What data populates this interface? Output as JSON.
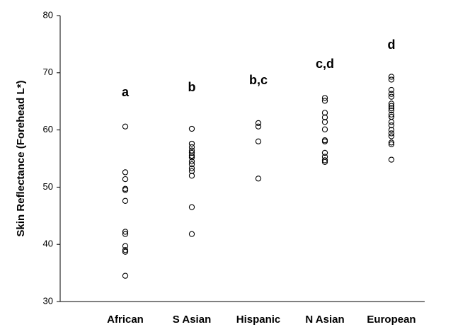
{
  "chart_data": {
    "type": "strip",
    "y_label": "Skin Reflectance (Forehead L*)",
    "categories": [
      "African",
      "S Asian",
      "Hispanic",
      "N Asian",
      "European"
    ],
    "annotations": [
      "a",
      "b",
      "b,c",
      "c,d",
      "d"
    ],
    "values": [
      [
        60.6,
        52.6,
        51.4,
        49.7,
        49.5,
        47.6,
        42.2,
        41.8,
        39.7,
        39.0,
        38.7,
        34.5
      ],
      [
        60.2,
        57.6,
        57.0,
        56.4,
        56.0,
        55.5,
        55.2,
        54.5,
        54.0,
        53.3,
        52.8,
        52.0,
        46.5,
        41.8
      ],
      [
        61.2,
        60.6,
        58.0,
        51.5
      ],
      [
        65.6,
        65.1,
        63.0,
        62.2,
        61.4,
        60.1,
        58.2,
        58.0,
        56.0,
        55.3,
        54.7,
        54.4
      ],
      [
        69.3,
        68.8,
        67.0,
        66.3,
        65.8,
        64.6,
        64.2,
        63.8,
        63.4,
        62.7,
        62.3,
        61.4,
        60.8,
        60.0,
        59.4,
        58.9,
        57.8,
        57.5,
        54.8
      ]
    ],
    "color": "#000000",
    "ylim": [
      30,
      80
    ],
    "yticks": [
      30,
      40,
      50,
      60,
      70,
      80
    ],
    "grid": false
  }
}
